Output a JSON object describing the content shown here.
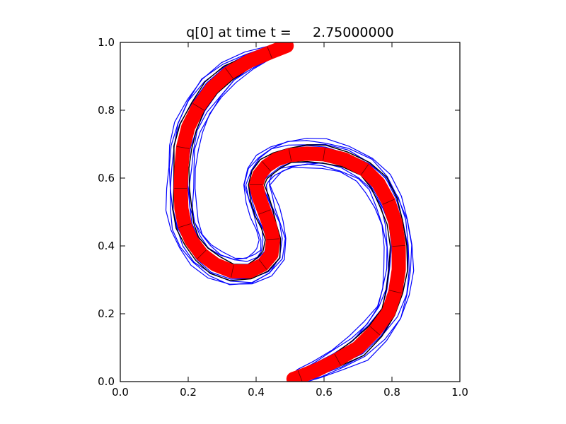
{
  "chart_data": {
    "type": "line",
    "title": "q[0] at time t =     2.75000000",
    "xlabel": "",
    "ylabel": "",
    "xlim": [
      0.0,
      1.0
    ],
    "ylim": [
      0.0,
      1.0
    ],
    "x_ticks": [
      "0.0",
      "0.2",
      "0.4",
      "0.6",
      "0.8",
      "1.0"
    ],
    "y_ticks": [
      "0.0",
      "0.2",
      "0.4",
      "0.6",
      "0.8",
      "1.0"
    ],
    "grid": false,
    "legend": "none",
    "colors": {
      "contour": "#0000ff",
      "filament": "#ff0000",
      "mesh": "#000000",
      "background": "#ffffff"
    },
    "series": [
      {
        "style": "thick red filament with overlaid contours",
        "x": [
          0.49,
          0.44,
          0.38,
          0.32,
          0.27,
          0.23,
          0.2,
          0.185,
          0.18,
          0.178,
          0.18,
          0.19,
          0.21,
          0.24,
          0.28,
          0.33,
          0.38,
          0.42,
          0.445,
          0.45,
          0.44,
          0.425,
          0.41,
          0.4,
          0.41,
          0.43,
          0.46,
          0.5,
          0.55,
          0.6,
          0.66,
          0.72,
          0.76,
          0.79,
          0.81,
          0.82,
          0.82,
          0.81,
          0.79,
          0.75,
          0.7,
          0.64,
          0.58,
          0.53,
          0.51
        ],
        "y": [
          0.99,
          0.97,
          0.945,
          0.91,
          0.865,
          0.81,
          0.75,
          0.69,
          0.63,
          0.57,
          0.51,
          0.46,
          0.415,
          0.375,
          0.345,
          0.325,
          0.325,
          0.345,
          0.375,
          0.42,
          0.46,
          0.5,
          0.54,
          0.58,
          0.61,
          0.635,
          0.655,
          0.668,
          0.672,
          0.67,
          0.655,
          0.625,
          0.585,
          0.53,
          0.47,
          0.4,
          0.33,
          0.265,
          0.205,
          0.15,
          0.1,
          0.065,
          0.035,
          0.015,
          0.008
        ]
      }
    ]
  }
}
